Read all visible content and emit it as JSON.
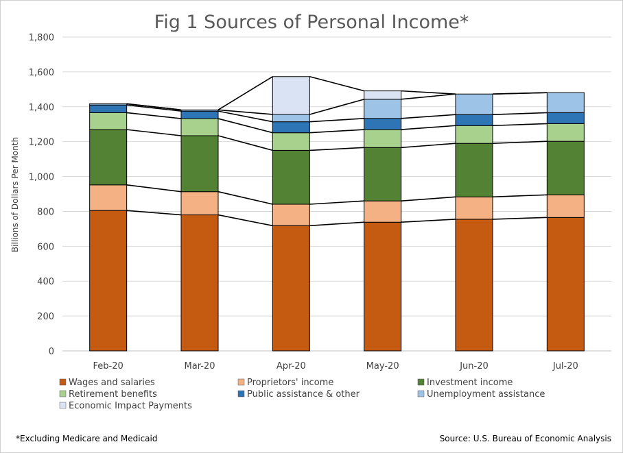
{
  "chart_data": {
    "type": "bar",
    "stacked": true,
    "title": "Fig 1 Sources of Personal Income*",
    "xlabel": "",
    "ylabel": "Billions of Dollars Per Month",
    "ylim": [
      0,
      1800
    ],
    "yticks": [
      0,
      200,
      400,
      600,
      800,
      1000,
      1200,
      1400,
      1600,
      1800
    ],
    "ytick_labels": [
      "0",
      "200",
      "400",
      "600",
      "800",
      "1,000",
      "1,200",
      "1,400",
      "1,600",
      "1,800"
    ],
    "grid": true,
    "legend_position": "bottom",
    "categories": [
      "Feb-20",
      "Mar-20",
      "Apr-20",
      "May-20",
      "Jun-20",
      "Jul-20"
    ],
    "series": [
      {
        "name": "Wages and salaries",
        "color": "#c55a11",
        "values": [
          805,
          780,
          718,
          738,
          755,
          765
        ]
      },
      {
        "name": "Proprietors' income",
        "color": "#f4b183",
        "values": [
          147,
          133,
          123,
          122,
          128,
          130
        ]
      },
      {
        "name": "Investment income",
        "color": "#548235",
        "values": [
          317,
          321,
          309,
          306,
          307,
          307
        ]
      },
      {
        "name": "Retirement benefits",
        "color": "#a9d18e",
        "values": [
          97,
          98,
          101,
          103,
          102,
          101
        ]
      },
      {
        "name": "Public assistance & other",
        "color": "#2e75b6",
        "values": [
          44,
          43,
          63,
          64,
          63,
          63
        ]
      },
      {
        "name": "Unemployment assistance",
        "color": "#9dc3e6",
        "values": [
          7,
          7,
          42,
          110,
          118,
          115
        ]
      },
      {
        "name": "Economic Impact Payments",
        "color": "#dae3f3",
        "values": [
          0,
          0,
          217,
          48,
          0,
          0
        ]
      }
    ],
    "connector_lines": true
  },
  "footnote": "*Excluding Medicare and Medicaid",
  "source": "Source: U.S. Bureau of Economic Analysis"
}
